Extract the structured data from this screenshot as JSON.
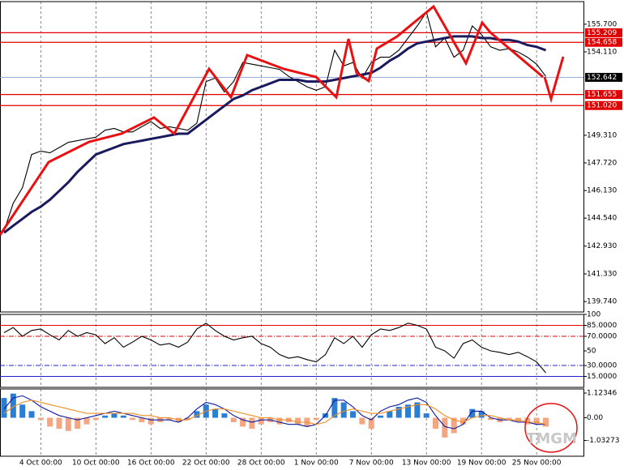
{
  "chart_data": [
    {
      "type": "line",
      "categories": [
        null,
        null,
        null,
        null,
        "4 Oct 00:00",
        null,
        null,
        null,
        null,
        null,
        "10 Oct 00:00",
        null,
        null,
        null,
        null,
        null,
        "16 Oct 00:00",
        null,
        null,
        null,
        null,
        null,
        "22 Oct 00:00",
        null,
        null,
        null,
        null,
        null,
        "28 Oct 00:00",
        null,
        null,
        null,
        null,
        null,
        "1 Nov 00:00",
        null,
        null,
        null,
        null,
        null,
        "7 Nov 00:00",
        null,
        null,
        null,
        null,
        null,
        "13 Nov 00:00",
        null,
        null,
        null,
        null,
        null,
        "19 Nov 00:00",
        null,
        null,
        null,
        null,
        null,
        "25 Nov 00:00",
        null
      ],
      "series": [
        {
          "color": "#000000",
          "values": [
            143.8,
            145.4,
            146.3,
            148.2,
            148.4,
            148.3,
            148.6,
            148.9,
            149.0,
            149.1,
            149.2,
            149.6,
            149.7,
            149.5,
            149.5,
            149.8,
            150.1,
            149.7,
            149.8,
            149.7,
            149.6,
            150.0,
            152.4,
            152.6,
            151.8,
            152.4,
            153.5,
            153.4,
            153.3,
            153.2,
            153.1,
            152.7,
            152.4,
            152.1,
            151.9,
            152.1,
            154.2,
            153.3,
            153.5,
            152.6,
            153.5,
            153.8,
            153.8,
            154.2,
            154.9,
            155.6,
            156.4,
            154.4,
            154.9,
            153.8,
            154.2,
            155.6,
            155.1,
            154.4,
            154.2,
            154.3,
            154.1,
            153.8,
            153.4,
            152.7
          ]
        },
        {
          "color": "#1a1a5e",
          "values": [
            143.7,
            144.1,
            144.5,
            144.9,
            145.2,
            145.6,
            146.1,
            146.6,
            147.2,
            147.7,
            148.2,
            148.4,
            148.6,
            148.8,
            148.9,
            149.0,
            149.1,
            149.2,
            149.3,
            149.4,
            149.4,
            149.8,
            150.2,
            150.6,
            151.0,
            151.4,
            151.6,
            151.9,
            152.1,
            152.3,
            152.5,
            152.5,
            152.5,
            152.4,
            152.4,
            152.4,
            152.5,
            152.6,
            152.7,
            152.8,
            152.9,
            153.2,
            153.6,
            153.9,
            154.3,
            154.6,
            154.7,
            154.8,
            154.9,
            155.0,
            155.0,
            155.0,
            154.9,
            154.9,
            154.8,
            154.8,
            154.7,
            154.5,
            154.4,
            154.2
          ]
        }
      ],
      "ylim": [
        139.14,
        157.0
      ],
      "yticks": [
        {
          "value": 155.7,
          "label": "155.700"
        },
        {
          "value": 154.11,
          "label": "154.110"
        },
        {
          "value": 149.31,
          "label": "149.310"
        },
        {
          "value": 147.72,
          "label": "147.720"
        },
        {
          "value": 146.13,
          "label": "146.130"
        },
        {
          "value": 144.54,
          "label": "144.540"
        },
        {
          "value": 142.93,
          "label": "142.930"
        },
        {
          "value": 141.33,
          "label": "141.330"
        },
        {
          "value": 139.74,
          "label": "139.740"
        }
      ],
      "levels": [
        155.209,
        154.658,
        151.655,
        {
          "value": 151.02,
          "label": "151.020"
        }
      ],
      "level_color": "#e00000",
      "current_price": 152.642,
      "watermark": "TMGM"
    },
    {
      "type": "line",
      "series": [
        {
          "color": "#000000",
          "values": [
            75,
            82,
            70,
            78,
            80,
            72,
            65,
            78,
            70,
            75,
            72,
            60,
            68,
            55,
            62,
            70,
            65,
            58,
            60,
            55,
            62,
            80,
            88,
            78,
            70,
            65,
            68,
            70,
            60,
            55,
            45,
            40,
            42,
            38,
            35,
            45,
            68,
            60,
            70,
            55,
            72,
            80,
            78,
            82,
            88,
            85,
            80,
            55,
            50,
            40,
            60,
            65,
            55,
            50,
            48,
            45,
            48,
            42,
            35,
            20
          ]
        }
      ],
      "ylim": [
        0,
        100
      ],
      "yticks": [
        100,
        {
          "value": 85,
          "label": "85.0000"
        },
        {
          "value": 70,
          "label": "70.0000"
        },
        50,
        {
          "value": 30,
          "label": "30.0000"
        },
        {
          "value": 15,
          "label": "15.0000"
        }
      ],
      "levels": [
        {
          "value": 85,
          "color": "#e00000"
        },
        {
          "value": 70,
          "color": "#e00000"
        },
        {
          "value": 30,
          "color": "#2020d0"
        },
        {
          "value": 15,
          "color": "#2020d0"
        }
      ]
    },
    {
      "type": "macd",
      "series": [
        {
          "type": "bar",
          "color": "#2a7fd4",
          "negative_color": "#f4a582",
          "values": [
            0.9,
            1.1,
            0.6,
            0.3,
            -0.1,
            -0.4,
            -0.5,
            -0.6,
            -0.5,
            -0.3,
            -0.1,
            0.1,
            0.2,
            0.1,
            -0.1,
            -0.2,
            -0.3,
            -0.2,
            -0.1,
            -0.2,
            -0.1,
            0.3,
            0.6,
            0.4,
            0.2,
            -0.2,
            -0.4,
            -0.5,
            -0.3,
            -0.2,
            -0.3,
            -0.2,
            -0.3,
            -0.4,
            -0.1,
            0.2,
            0.9,
            0.7,
            0.3,
            -0.3,
            -0.5,
            0.1,
            0.3,
            0.5,
            0.6,
            0.7,
            0.2,
            -0.5,
            -0.9,
            -0.7,
            -0.3,
            0.4,
            0.3,
            -0.1,
            -0.2,
            -0.1,
            -0.2,
            -0.3,
            -0.3,
            -0.4
          ]
        },
        {
          "type": "line",
          "color": "#0a1aa0",
          "values": [
            0.4,
            0.9,
            1.0,
            0.8,
            0.5,
            0.3,
            0.1,
            0.0,
            -0.1,
            0.0,
            0.1,
            0.2,
            0.3,
            0.2,
            0.1,
            0.0,
            -0.1,
            -0.1,
            -0.1,
            -0.2,
            0.0,
            0.4,
            0.7,
            0.6,
            0.4,
            0.1,
            -0.1,
            -0.2,
            -0.1,
            -0.1,
            -0.2,
            -0.3,
            -0.3,
            -0.4,
            -0.3,
            0.1,
            0.8,
            0.8,
            0.5,
            0.1,
            -0.1,
            0.3,
            0.5,
            0.6,
            0.8,
            0.9,
            0.7,
            0.1,
            -0.4,
            -0.5,
            -0.3,
            0.3,
            0.3,
            0.0,
            -0.1,
            -0.1,
            -0.2,
            -0.2,
            -0.3,
            -0.3
          ]
        },
        {
          "type": "line",
          "color": "#f08c1e",
          "values": [
            0.2,
            0.5,
            0.7,
            0.8,
            0.7,
            0.6,
            0.5,
            0.4,
            0.3,
            0.2,
            0.2,
            0.2,
            0.2,
            0.2,
            0.2,
            0.1,
            0.1,
            0.0,
            0.0,
            -0.1,
            -0.1,
            0.1,
            0.3,
            0.4,
            0.4,
            0.3,
            0.2,
            0.1,
            0.0,
            0.0,
            -0.1,
            -0.1,
            -0.2,
            -0.2,
            -0.3,
            -0.2,
            0.1,
            0.3,
            0.4,
            0.3,
            0.2,
            0.2,
            0.3,
            0.4,
            0.5,
            0.6,
            0.6,
            0.4,
            0.1,
            -0.1,
            -0.2,
            0.0,
            0.1,
            0.1,
            0.0,
            -0.1,
            -0.1,
            -0.2,
            -0.2,
            -0.3
          ]
        }
      ],
      "ylim": [
        -1.75,
        1.31
      ],
      "yticks": [
        1.12346,
        {
          "value": 0,
          "label": "0.00"
        },
        -1.03273
      ]
    }
  ]
}
